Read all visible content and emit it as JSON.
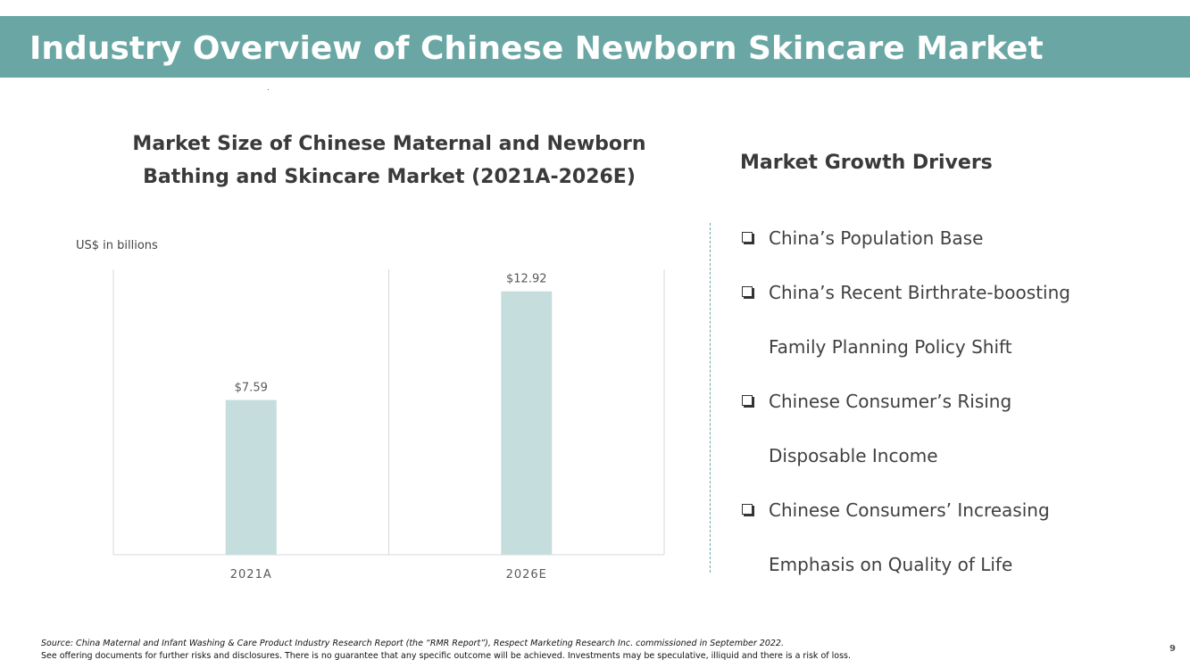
{
  "slide": {
    "title": "Industry Overview of Chinese Newborn Skincare Market",
    "page_number": "9",
    "accent_color": "#6aa7a4"
  },
  "chart": {
    "title_line1": "Market Size of Chinese Maternal and Newborn",
    "title_line2": "Bathing and Skincare Market (2021A-2026E)",
    "unit_label": "US$ in billions"
  },
  "chart_data": {
    "type": "bar",
    "title": "Market Size of Chinese Maternal and Newborn Bathing and Skincare Market (2021A-2026E)",
    "ylabel": "US$ in billions",
    "categories": [
      "2021A",
      "2026E"
    ],
    "values": [
      7.59,
      12.92
    ],
    "data_labels": [
      "$7.59",
      "$12.92"
    ],
    "ylim": [
      0,
      14
    ],
    "bar_color": "#c5dedd",
    "grid": false,
    "legend": "none"
  },
  "drivers": {
    "title": "Market Growth Drivers",
    "items": [
      {
        "line1": "China’s Population Base",
        "line2": ""
      },
      {
        "line1": "China’s Recent Birthrate-boosting",
        "line2": "Family Planning Policy Shift"
      },
      {
        "line1": "Chinese Consumer’s Rising",
        "line2": "Disposable Income"
      },
      {
        "line1": "Chinese Consumers’ Increasing",
        "line2": "Emphasis on Quality of Life"
      }
    ]
  },
  "footer": {
    "source": "Source: China Maternal and Infant Washing & Care Product Industry Research Report (the “RMR Report”), Respect Marketing Research Inc. commissioned in September 2022.",
    "disclaimer": "See offering documents for further risks and disclosures. There is no guarantee that any specific outcome will be achieved. Investments may be speculative, illiquid and there is a risk of loss."
  }
}
